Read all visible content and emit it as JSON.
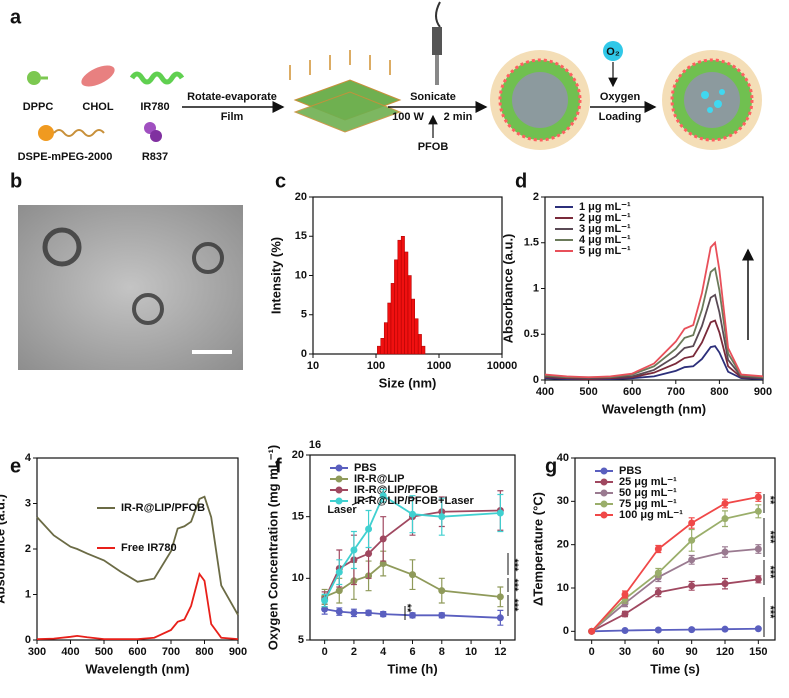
{
  "panel_labels": [
    "a",
    "b",
    "c",
    "d",
    "e",
    "f",
    "g"
  ],
  "schematic": {
    "texts": [
      "DPPC",
      "CHOL",
      "IR780",
      "DSPE-mPEG-2000",
      "R837",
      "Rotate-evaporate",
      "Film",
      "Sonicate",
      "100 W",
      "2 min",
      "PFOB",
      "O₂",
      "Oxygen",
      "Loading"
    ]
  },
  "chart_data": [
    {
      "type": "histogram",
      "x_label": "Size (nm)",
      "y_label": "Intensity (%)",
      "xlog": true,
      "color": "#f01010",
      "bins": [
        105,
        119,
        135,
        153,
        173,
        196,
        222,
        251,
        284,
        322,
        364,
        412,
        467,
        529,
        600
      ],
      "values": [
        1,
        2,
        4,
        6.5,
        9,
        12,
        14.5,
        15,
        13,
        10,
        7,
        4.5,
        2.5,
        1
      ],
      "xlim": [
        10,
        10000
      ],
      "xticks": [
        10,
        100,
        1000,
        10000
      ],
      "ylim": [
        0,
        20
      ],
      "yticks": [
        0,
        5,
        10,
        15,
        20
      ]
    },
    {
      "type": "line",
      "x_label": "Wavelength (nm)",
      "y_label": "Absorbance (a.u.)",
      "legend": "upper left",
      "x": [
        400,
        450,
        500,
        550,
        600,
        650,
        700,
        720,
        740,
        760,
        780,
        790,
        800,
        820,
        850,
        900
      ],
      "series": [
        {
          "name": "1 μg mL⁻¹",
          "color": "#2c2f7a",
          "values": [
            0.02,
            0.01,
            0.01,
            0.01,
            0.02,
            0.04,
            0.1,
            0.14,
            0.15,
            0.23,
            0.36,
            0.37,
            0.3,
            0.09,
            0.02,
            0.01
          ]
        },
        {
          "name": "2 μg mL⁻¹",
          "color": "#7a2a3a",
          "values": [
            0.03,
            0.02,
            0.01,
            0.02,
            0.03,
            0.08,
            0.18,
            0.24,
            0.26,
            0.41,
            0.63,
            0.65,
            0.52,
            0.15,
            0.03,
            0.02
          ]
        },
        {
          "name": "3 μg mL⁻¹",
          "color": "#5a4a55",
          "values": [
            0.04,
            0.03,
            0.02,
            0.03,
            0.04,
            0.11,
            0.26,
            0.35,
            0.37,
            0.59,
            0.9,
            0.93,
            0.74,
            0.22,
            0.04,
            0.02
          ]
        },
        {
          "name": "4 μg mL⁻¹",
          "color": "#6b7a5a",
          "values": [
            0.05,
            0.03,
            0.03,
            0.03,
            0.06,
            0.15,
            0.34,
            0.46,
            0.49,
            0.77,
            1.18,
            1.22,
            0.98,
            0.29,
            0.05,
            0.03
          ]
        },
        {
          "name": "5 μg mL⁻¹",
          "color": "#e8505a",
          "values": [
            0.06,
            0.04,
            0.03,
            0.04,
            0.07,
            0.18,
            0.42,
            0.56,
            0.6,
            0.95,
            1.45,
            1.5,
            1.2,
            0.35,
            0.06,
            0.04
          ]
        }
      ],
      "xlim": [
        400,
        900
      ],
      "xticks": [
        400,
        500,
        600,
        700,
        800,
        900
      ],
      "ylim": [
        0,
        2
      ],
      "yticks": [
        0,
        0.5,
        1,
        1.5,
        2
      ]
    },
    {
      "type": "line",
      "x_label": "Wavelength (nm)",
      "y_label": "Absorbance (a.u.)",
      "legend": "upper left",
      "x": [
        300,
        350,
        400,
        420,
        450,
        500,
        550,
        600,
        650,
        700,
        720,
        740,
        760,
        785,
        800,
        820,
        850,
        900
      ],
      "series": [
        {
          "name": "IR-R@LIP/PFOB",
          "color": "#6b6b45",
          "values": [
            2.7,
            2.3,
            2.05,
            2.0,
            1.9,
            1.75,
            1.5,
            1.28,
            1.35,
            1.95,
            2.45,
            2.5,
            2.6,
            3.1,
            3.15,
            2.7,
            1.2,
            0.55
          ]
        },
        {
          "name": "Free IR780",
          "color": "#e8201a",
          "values": [
            0.02,
            0.03,
            0.07,
            0.09,
            0.06,
            0.02,
            0.02,
            0.02,
            0.05,
            0.22,
            0.4,
            0.45,
            0.75,
            1.45,
            1.3,
            0.35,
            0.05,
            0.02
          ]
        }
      ],
      "xlim": [
        300,
        900
      ],
      "xticks": [
        300,
        400,
        500,
        600,
        700,
        800,
        900
      ],
      "ylim": [
        0,
        4
      ],
      "yticks": [
        0,
        1,
        2,
        3,
        4
      ]
    },
    {
      "type": "line",
      "markers": true,
      "x_label": "Time (h)",
      "y_label": "Oxygen Concentration (mg mL⁻¹)",
      "legend": "upper left",
      "annotations": [
        "16",
        "Laser",
        "**",
        "***",
        "***",
        "***"
      ],
      "x": [
        0,
        1,
        2,
        3,
        4,
        6,
        8,
        12
      ],
      "series": [
        {
          "name": "PBS",
          "color": "#5a5fbf",
          "values": [
            7.5,
            7.3,
            7.2,
            7.2,
            7.1,
            7.0,
            7.0,
            6.8
          ],
          "errors": [
            0.4,
            0.3,
            0.3,
            0.2,
            0.2,
            0.2,
            0.2,
            0.6
          ]
        },
        {
          "name": "IR-R@LIP",
          "color": "#8f9a5a",
          "values": [
            8.5,
            9.0,
            9.8,
            10.2,
            11.2,
            10.3,
            9.0,
            8.5
          ],
          "errors": [
            0.6,
            1,
            1.5,
            1.2,
            1.0,
            1.2,
            1.0,
            0.8
          ]
        },
        {
          "name": "IR-R@LIP/PFOB",
          "color": "#a04860",
          "values": [
            8.3,
            10.8,
            11.5,
            12.0,
            13.2,
            15.0,
            15.4,
            15.5
          ],
          "errors": [
            0.6,
            1.5,
            2,
            2,
            1.8,
            1.5,
            1.2,
            1.6
          ]
        },
        {
          "name": "IR-R@LIP/PFOB+Laser",
          "color": "#40d0d0",
          "values": [
            8.2,
            10.5,
            12.3,
            14.0,
            16.7,
            15.2,
            15.0,
            15.3
          ],
          "errors": [
            0.5,
            1.0,
            1.5,
            1.5,
            0.5,
            1.5,
            1.5,
            1.5
          ]
        }
      ],
      "xlim": [
        -1,
        13
      ],
      "xticks": [
        0,
        2,
        4,
        6,
        8,
        10,
        12
      ],
      "ylim": [
        5,
        20
      ],
      "yticks": [
        5,
        10,
        15,
        20
      ]
    },
    {
      "type": "line",
      "markers": true,
      "x_label": "Time (s)",
      "y_label": "ΔTemperature (°C)",
      "legend": "upper left",
      "annotations": [
        "**",
        "***",
        "***",
        "***"
      ],
      "x": [
        0,
        30,
        60,
        90,
        120,
        150
      ],
      "series": [
        {
          "name": "PBS",
          "color": "#5a5fbf",
          "values": [
            0,
            0.2,
            0.3,
            0.4,
            0.5,
            0.6
          ],
          "errors": [
            0.2,
            0.2,
            0.2,
            0.2,
            0.2,
            0.2
          ]
        },
        {
          "name": "25 μg mL⁻¹",
          "color": "#a04860",
          "values": [
            0,
            4,
            9,
            10.5,
            11,
            12
          ],
          "errors": [
            0.3,
            0.6,
            1,
            1,
            1.2,
            0.8
          ]
        },
        {
          "name": "50 μg mL⁻¹",
          "color": "#9a7a90",
          "values": [
            0,
            6.5,
            12.5,
            16.5,
            18.3,
            19
          ],
          "errors": [
            0.3,
            0.8,
            1,
            1,
            1.2,
            1
          ]
        },
        {
          "name": "75 μg mL⁻¹",
          "color": "#9aae6a",
          "values": [
            0,
            7.5,
            13.5,
            21,
            26,
            27.7
          ],
          "errors": [
            0.3,
            1,
            1,
            2.5,
            1.8,
            1.5
          ]
        },
        {
          "name": "100 μg mL⁻¹",
          "color": "#f04848",
          "values": [
            0,
            8.5,
            19,
            25,
            29.5,
            31
          ],
          "errors": [
            0.3,
            0.8,
            0.8,
            1.2,
            1,
            1
          ]
        }
      ],
      "xlim": [
        -15,
        165
      ],
      "xticks": [
        0,
        30,
        60,
        90,
        120,
        150
      ],
      "ylim": [
        -2,
        40
      ],
      "yticks": [
        0,
        10,
        20,
        30,
        40
      ]
    }
  ]
}
